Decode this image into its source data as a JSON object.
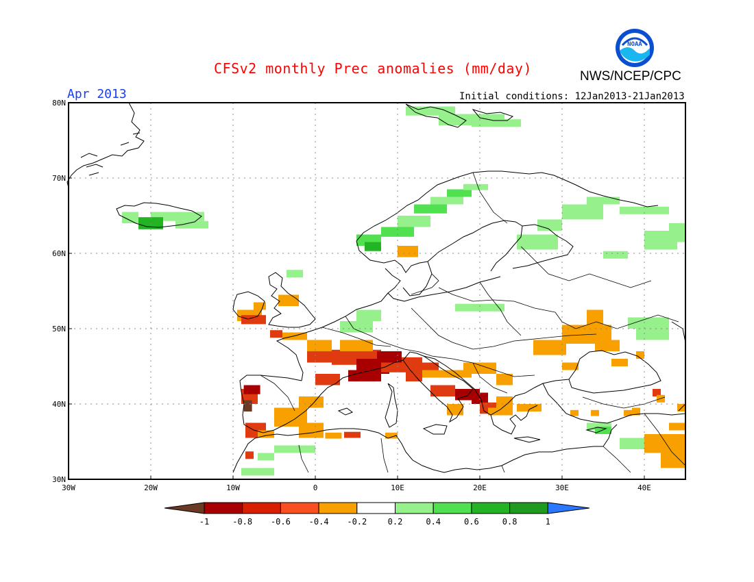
{
  "map": {
    "title": "CFSv2 monthly Prec anomalies (mm/day)",
    "organization": "NWS/NCEP/CPC",
    "logo_text": "NOAA",
    "period": "Apr 2013",
    "initial_conditions": "Initial conditions: 12Jan2013-21Jan2013",
    "lat_labels": [
      "80N",
      "70N",
      "60N",
      "50N",
      "40N",
      "30N"
    ],
    "lon_labels": [
      "30W",
      "20W",
      "10W",
      "0",
      "10E",
      "20E",
      "30E",
      "40E"
    ],
    "lat_range": [
      30,
      80
    ],
    "lon_range": [
      -30,
      45
    ],
    "grid": true,
    "projection": "cylindrical equidistant"
  },
  "colorbar": {
    "labels": [
      "-1",
      "-0.8",
      "-0.6",
      "-0.4",
      "-0.2",
      "0.2",
      "0.4",
      "0.6",
      "0.8",
      "1"
    ],
    "colors": [
      "#6b3a24",
      "#a80000",
      "#d82000",
      "#f85020",
      "#f8a000",
      "#ffffff",
      "#96f08c",
      "#50e050",
      "#23b423",
      "#1e9b1e",
      "#2a78ff"
    ]
  },
  "colors": {
    "title": "#ff0000",
    "period": "#1a3ff0",
    "dry_strong": "#a80000",
    "dry_moderate": "#e03a10",
    "dry_light": "#f8a000",
    "wet_light": "#96f08c",
    "wet_moderate": "#50e050",
    "wet_strong": "#23b423",
    "extreme_dry": "#6b3a24"
  }
}
